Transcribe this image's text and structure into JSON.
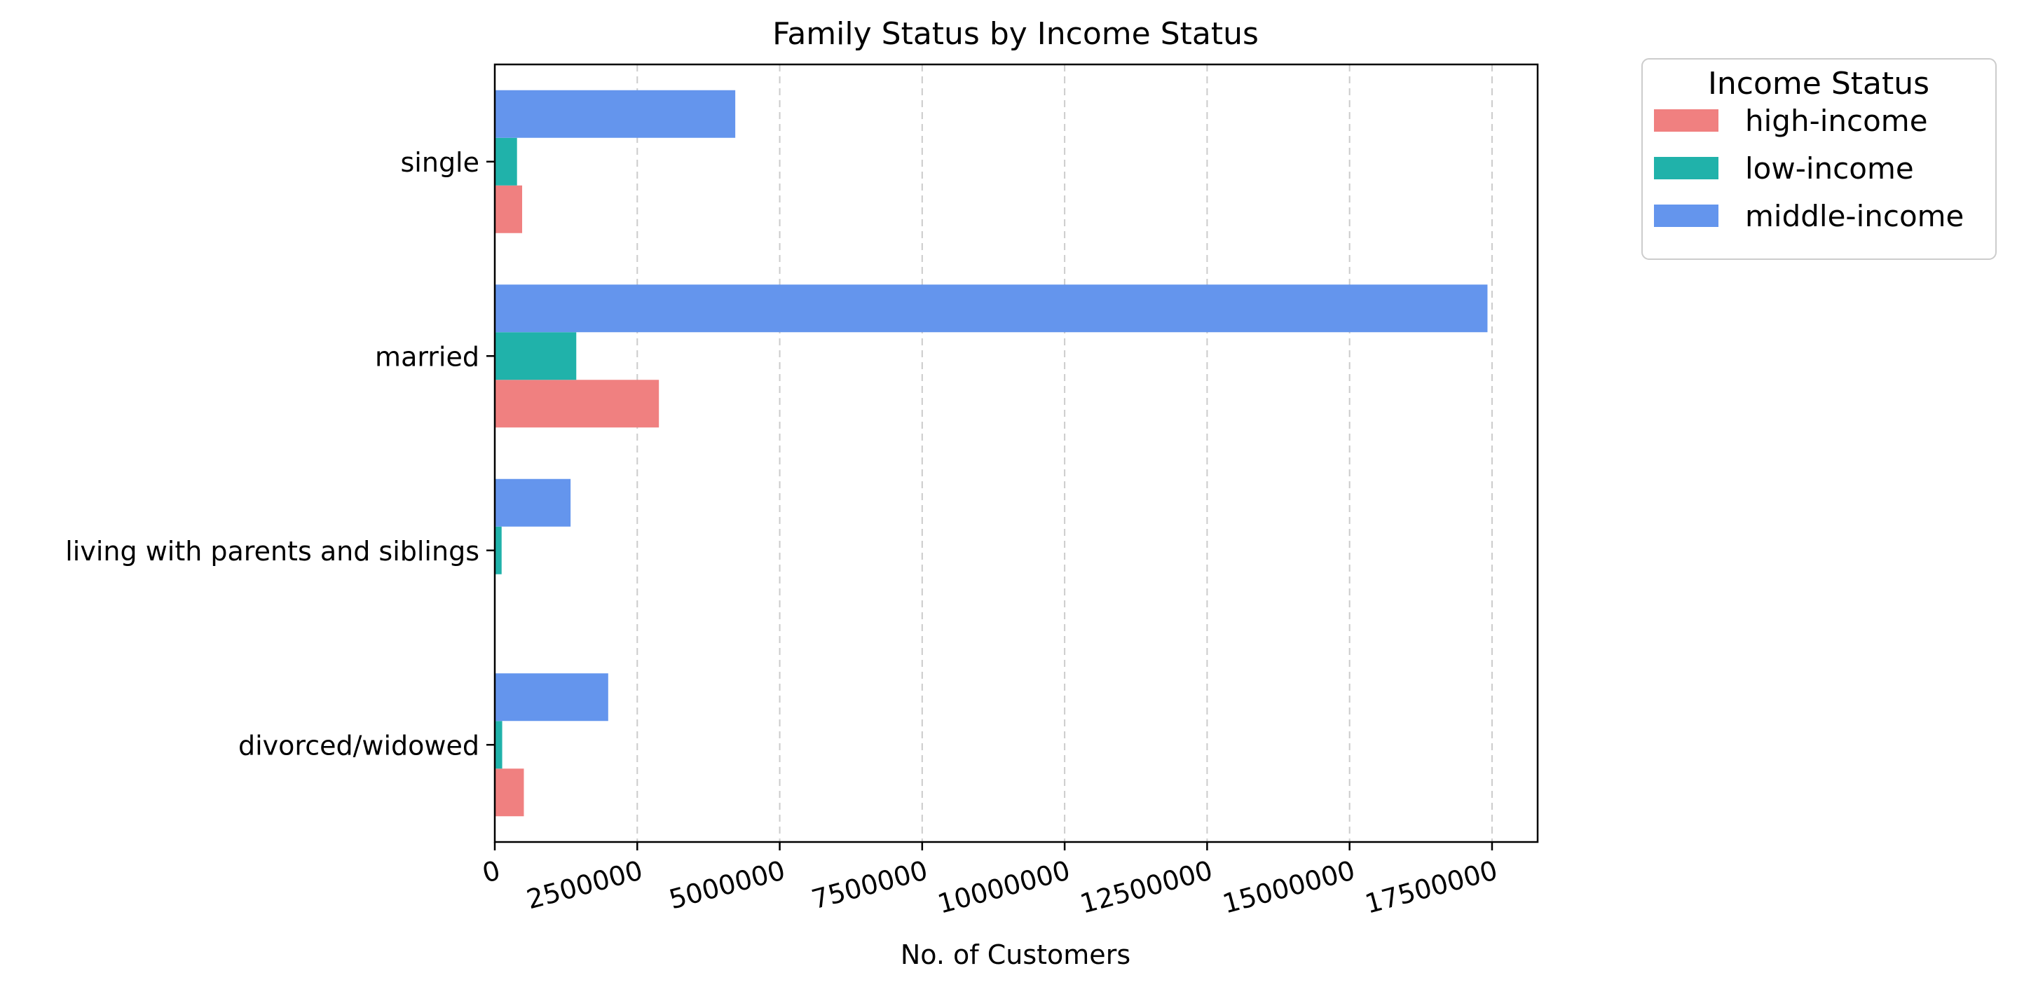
{
  "chart_data": {
    "type": "bar",
    "orientation": "horizontal",
    "title": "Family Status by Income Status",
    "xlabel": "No. of Customers",
    "ylabel": "",
    "categories": [
      "single",
      "married",
      "living with parents and siblings",
      "divorced/widowed"
    ],
    "series": [
      {
        "name": "high-income",
        "color": "#F08080",
        "values": [
          480000,
          2880000,
          0,
          510000
        ]
      },
      {
        "name": "low-income",
        "color": "#20B2AA",
        "values": [
          390000,
          1430000,
          120000,
          130000
        ]
      },
      {
        "name": "middle-income",
        "color": "#6495ED",
        "values": [
          4220000,
          17420000,
          1330000,
          1990000
        ]
      }
    ],
    "xlim": [
      0,
      18300000
    ],
    "xticks": [
      0,
      2500000,
      5000000,
      7500000,
      10000000,
      12500000,
      15000000,
      17500000
    ],
    "xtick_labels": [
      "0",
      "2500000",
      "5000000",
      "7500000",
      "10000000",
      "12500000",
      "15000000",
      "17500000"
    ],
    "xtick_rotation_deg": -15,
    "grid": {
      "x": true,
      "y": false,
      "style": "dashed"
    },
    "legend": {
      "title": "Income Status",
      "placement": "outside-top-right"
    }
  }
}
